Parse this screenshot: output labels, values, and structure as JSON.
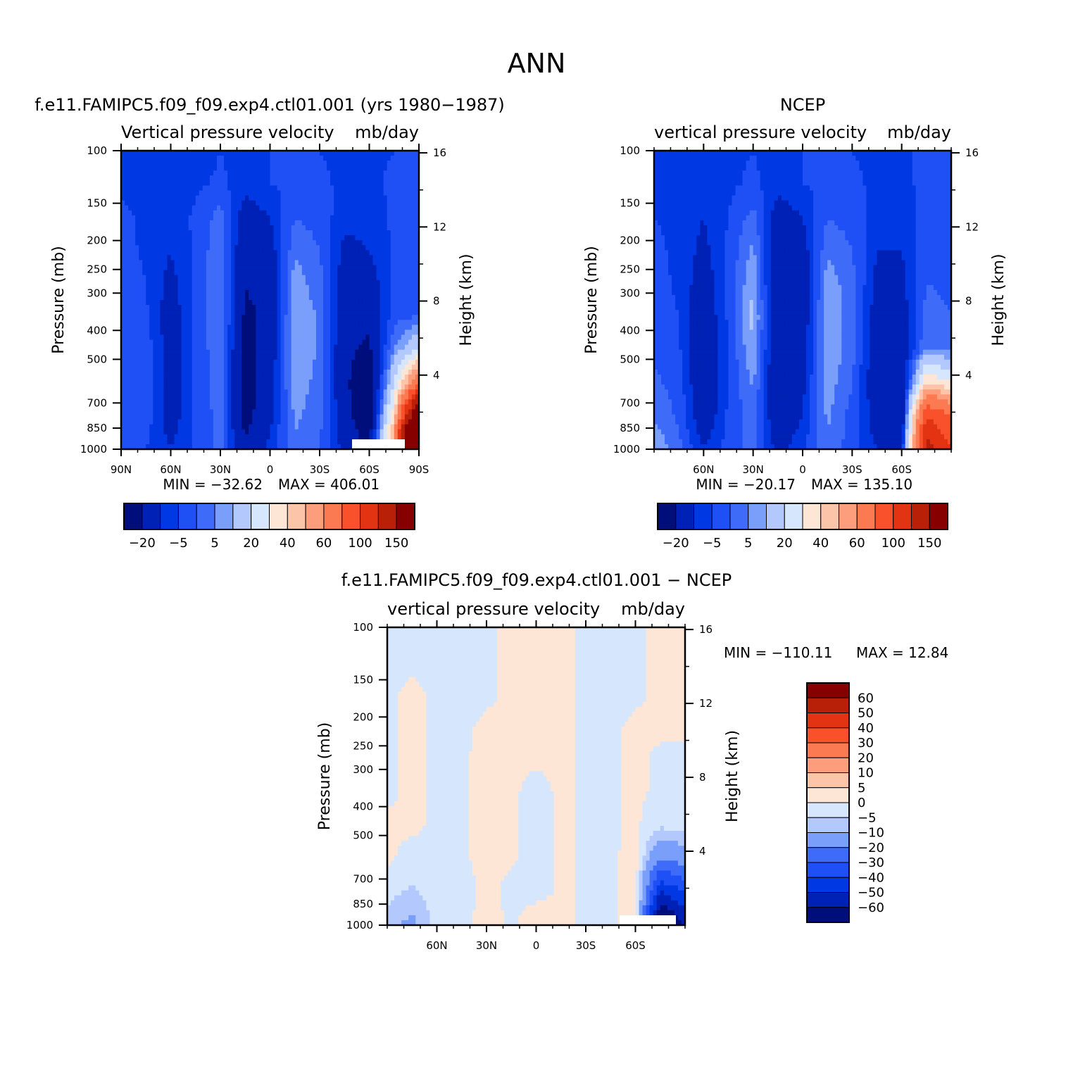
{
  "main_title": "ANN",
  "chart_data": [
    {
      "type": "heatmap",
      "title": "f.e11.FAMIPC5.f09_f09.exp4.ctl01.001 (yrs 1980−1987)",
      "subtitle_left": "Vertical pressure velocity",
      "subtitle_right": "mb/day",
      "ylabel": "Pressure (mb)",
      "ylabel_right": "Height (km)",
      "y_ticks": [
        100,
        150,
        200,
        250,
        300,
        400,
        500,
        700,
        850,
        1000
      ],
      "y_right_ticks": [
        16,
        12,
        8,
        4
      ],
      "x_ticks": [
        "90N",
        "60N",
        "30N",
        "0",
        "30S",
        "60S",
        "90S"
      ],
      "xlim": [
        "90N",
        "90S"
      ],
      "ylim": [
        1000,
        100
      ],
      "min_text": "MIN = −32.62",
      "max_text": "MAX = 406.01",
      "colorbar_labels": [
        "−20",
        "−5",
        "5",
        "20",
        "40",
        "60",
        "100",
        "150"
      ],
      "columns": [
        {
          "lat": 90,
          "levels": [
            -8,
            -6,
            -4,
            -3,
            -2,
            -2,
            -2,
            -2,
            -2,
            -2
          ]
        },
        {
          "lat": 75,
          "levels": [
            -8,
            -8,
            -6,
            -6,
            -5,
            -4,
            -2,
            -1,
            -2,
            -5
          ]
        },
        {
          "lat": 60,
          "levels": [
            -8,
            -8,
            -8,
            -10,
            -12,
            -14,
            -14,
            -15,
            -14,
            -10
          ]
        },
        {
          "lat": 45,
          "levels": [
            -8,
            -6,
            -4,
            -4,
            -4,
            -4,
            -4,
            -4,
            -4,
            -4
          ]
        },
        {
          "lat": 30,
          "levels": [
            -5,
            -4,
            2,
            4,
            5,
            5,
            4,
            3,
            2,
            2
          ]
        },
        {
          "lat": 15,
          "levels": [
            -6,
            -8,
            -14,
            -18,
            -20,
            -22,
            -24,
            -26,
            -24,
            -18
          ]
        },
        {
          "lat": 0,
          "levels": [
            -5,
            -5,
            -10,
            -14,
            -16,
            -18,
            -16,
            -14,
            -12,
            -8
          ]
        },
        {
          "lat": -15,
          "levels": [
            -5,
            -4,
            0,
            4,
            8,
            10,
            10,
            8,
            6,
            4
          ]
        },
        {
          "lat": -30,
          "levels": [
            -5,
            -4,
            -2,
            0,
            2,
            4,
            4,
            3,
            2,
            0
          ]
        },
        {
          "lat": -45,
          "levels": [
            -6,
            -6,
            -8,
            -12,
            -14,
            -16,
            -18,
            -18,
            -16,
            -12
          ]
        },
        {
          "lat": -60,
          "levels": [
            -6,
            -6,
            -8,
            -10,
            -14,
            -18,
            -22,
            -28,
            -30,
            -20
          ]
        },
        {
          "lat": -75,
          "levels": [
            -5,
            -4,
            -4,
            -4,
            -4,
            -2,
            5,
            20,
            40,
            60
          ]
        },
        {
          "lat": -90,
          "levels": [
            -4,
            -4,
            -3,
            -2,
            -2,
            0,
            20,
            80,
            200,
            400
          ]
        }
      ]
    },
    {
      "type": "heatmap",
      "title": "NCEP",
      "subtitle_left": "vertical pressure velocity",
      "subtitle_right": "mb/day",
      "ylabel": "Pressure (mb)",
      "ylabel_right": "Height (km)",
      "y_ticks": [
        100,
        150,
        200,
        250,
        300,
        400,
        500,
        700,
        850,
        1000
      ],
      "y_right_ticks": [
        16,
        12,
        8,
        4
      ],
      "x_ticks": [
        "60N",
        "30N",
        "0",
        "30S",
        "60S"
      ],
      "xlim": [
        "90N",
        "90S"
      ],
      "ylim": [
        1000,
        100
      ],
      "min_text": "MIN = −20.17",
      "max_text": "MAX = 135.10",
      "colorbar_labels": [
        "−20",
        "−5",
        "5",
        "20",
        "40",
        "60",
        "100",
        "150"
      ],
      "columns": [
        {
          "lat": 90,
          "levels": [
            -6,
            -6,
            -5,
            -4,
            -3,
            -2,
            -1,
            1,
            4,
            10
          ]
        },
        {
          "lat": 75,
          "levels": [
            -6,
            -6,
            -6,
            -6,
            -6,
            -5,
            -4,
            -2,
            -1,
            2
          ]
        },
        {
          "lat": 60,
          "levels": [
            -6,
            -8,
            -10,
            -12,
            -14,
            -16,
            -18,
            -18,
            -16,
            -10
          ]
        },
        {
          "lat": 45,
          "levels": [
            -6,
            -6,
            -5,
            -4,
            -4,
            -4,
            -5,
            -5,
            -4,
            -3
          ]
        },
        {
          "lat": 30,
          "levels": [
            -5,
            -4,
            2,
            6,
            10,
            12,
            10,
            6,
            3,
            2
          ]
        },
        {
          "lat": 15,
          "levels": [
            -6,
            -8,
            -14,
            -18,
            -20,
            -20,
            -20,
            -20,
            -18,
            -12
          ]
        },
        {
          "lat": 0,
          "levels": [
            -5,
            -5,
            -10,
            -14,
            -16,
            -16,
            -14,
            -12,
            -10,
            -6
          ]
        },
        {
          "lat": -15,
          "levels": [
            -5,
            -4,
            0,
            4,
            8,
            10,
            10,
            8,
            6,
            4
          ]
        },
        {
          "lat": -30,
          "levels": [
            -5,
            -4,
            -2,
            0,
            2,
            2,
            2,
            0,
            -2,
            -3
          ]
        },
        {
          "lat": -45,
          "levels": [
            -6,
            -6,
            -8,
            -10,
            -12,
            -14,
            -16,
            -16,
            -14,
            -10
          ]
        },
        {
          "lat": -60,
          "levels": [
            -6,
            -6,
            -8,
            -10,
            -12,
            -14,
            -16,
            -20,
            -20,
            -14
          ]
        },
        {
          "lat": -75,
          "levels": [
            -4,
            -4,
            -3,
            -2,
            0,
            2,
            5,
            40,
            100,
            130
          ]
        },
        {
          "lat": -90,
          "levels": [
            -4,
            -4,
            -3,
            -2,
            -1,
            0,
            3,
            30,
            80,
            100
          ]
        }
      ]
    },
    {
      "type": "heatmap",
      "title": "f.e11.FAMIPC5.f09_f09.exp4.ctl01.001 − NCEP",
      "subtitle_left": "vertical pressure velocity",
      "subtitle_right": "mb/day",
      "ylabel": "Pressure (mb)",
      "ylabel_right": "Height (km)",
      "y_ticks": [
        100,
        150,
        200,
        250,
        300,
        400,
        500,
        700,
        850,
        1000
      ],
      "y_right_ticks": [
        16,
        12,
        8,
        4
      ],
      "x_ticks": [
        "60N",
        "30N",
        "0",
        "30S",
        "60S"
      ],
      "xlim": [
        "90N",
        "90S"
      ],
      "ylim": [
        1000,
        100
      ],
      "min_text": "MIN = −110.11",
      "max_text": "MAX =   12.84",
      "colorbar_labels": [
        "60",
        "50",
        "40",
        "30",
        "20",
        "10",
        "5",
        "0",
        "−5",
        "−10",
        "−20",
        "−30",
        "−40",
        "−50",
        "−60"
      ],
      "columns": [
        {
          "lat": 90,
          "levels": [
            -1,
            -1,
            -1,
            -1,
            -1,
            -1,
            1,
            1,
            -3,
            -8
          ]
        },
        {
          "lat": 75,
          "levels": [
            -1,
            -1,
            1,
            1,
            1,
            1,
            1,
            -2,
            -6,
            -12
          ]
        },
        {
          "lat": 60,
          "levels": [
            -1,
            -1,
            -1,
            -1,
            -1,
            -1,
            -1,
            -1,
            -2,
            -3
          ]
        },
        {
          "lat": 45,
          "levels": [
            -1,
            -1,
            -1,
            -1,
            -1,
            -1,
            -1,
            -1,
            -3,
            -2
          ]
        },
        {
          "lat": 30,
          "levels": [
            -1,
            -1,
            -1,
            1,
            2,
            2,
            2,
            2,
            2,
            3
          ]
        },
        {
          "lat": 15,
          "levels": [
            1,
            1,
            1,
            1,
            1,
            1,
            1,
            1,
            -2,
            -1
          ]
        },
        {
          "lat": 0,
          "levels": [
            1,
            1,
            1,
            1,
            1,
            -2,
            -3,
            -3,
            -2,
            4
          ]
        },
        {
          "lat": -15,
          "levels": [
            1,
            1,
            1,
            1,
            1,
            1,
            1,
            1,
            1,
            1
          ]
        },
        {
          "lat": -30,
          "levels": [
            -1,
            -1,
            -1,
            -1,
            -1,
            -1,
            -1,
            -1,
            -1,
            -1
          ]
        },
        {
          "lat": -45,
          "levels": [
            -1,
            -1,
            -1,
            -1,
            -1,
            -1,
            -1,
            -1,
            -1,
            -1
          ]
        },
        {
          "lat": -60,
          "levels": [
            -1,
            -1,
            -1,
            1,
            1,
            1,
            1,
            2,
            3,
            2
          ]
        },
        {
          "lat": -75,
          "levels": [
            1,
            1,
            1,
            1,
            -1,
            -1,
            -4,
            -20,
            -50,
            -80
          ]
        },
        {
          "lat": -90,
          "levels": [
            1,
            1,
            1,
            1,
            -1,
            -1,
            -2,
            -15,
            -40,
            -60
          ]
        }
      ]
    }
  ],
  "colors": {
    "abs_scale": [
      "#000e7c",
      "#0021b5",
      "#0038e4",
      "#1e50f5",
      "#3e6cf9",
      "#7a9ffb",
      "#b3c9fd",
      "#d6e6fd",
      "#fde6d6",
      "#fcc5aa",
      "#fc9d7c",
      "#fb7a52",
      "#f8512b",
      "#e23313",
      "#b82007",
      "#870000"
    ],
    "abs_levels": [
      -20,
      -10,
      -5,
      0,
      5,
      10,
      20,
      30,
      40,
      50,
      60,
      80,
      100,
      120,
      150
    ],
    "diff_scale": [
      "#000e7c",
      "#0021b5",
      "#0038e4",
      "#1e50f5",
      "#3e6cf9",
      "#7a9ffb",
      "#b3c9fd",
      "#d6e6fd",
      "#fde6d6",
      "#fcc5aa",
      "#fc9d7c",
      "#fb7a52",
      "#f8512b",
      "#e23313",
      "#b82007",
      "#870000"
    ],
    "diff_levels": [
      -60,
      -50,
      -40,
      -30,
      -20,
      -10,
      -5,
      0,
      5,
      10,
      20,
      30,
      40,
      50,
      60
    ]
  }
}
